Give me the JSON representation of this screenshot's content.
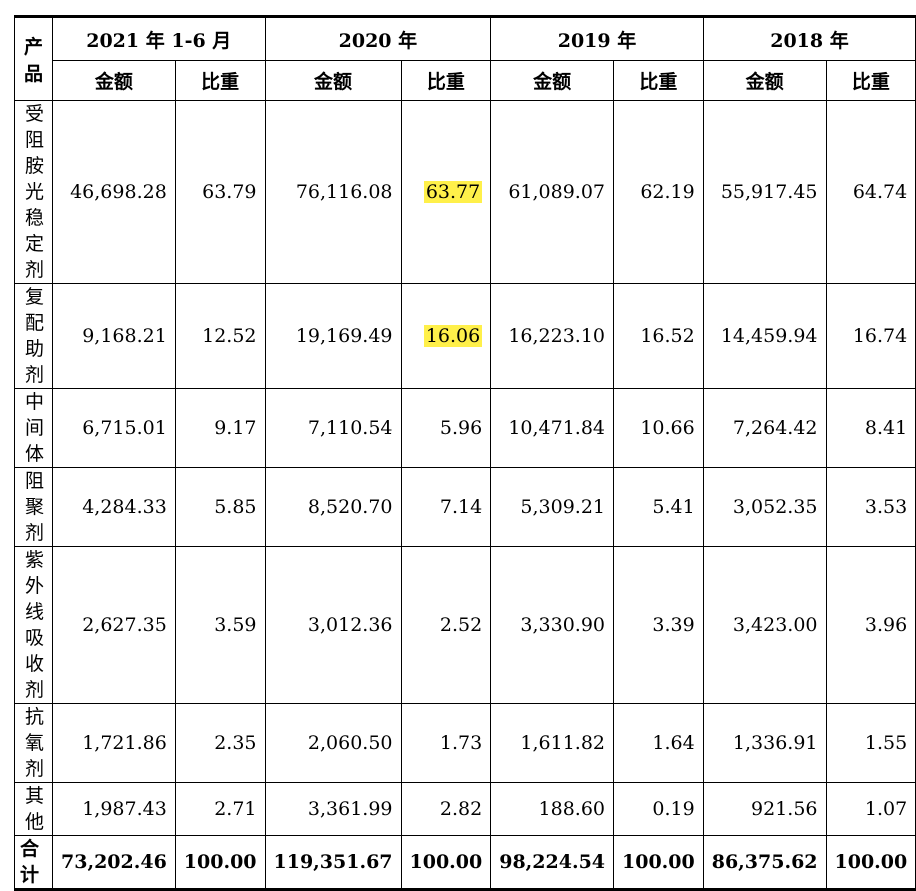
{
  "header": {
    "product": "产品",
    "periods": [
      "2021 年 1-6 月",
      "2020 年",
      "2019 年",
      "2018 年"
    ],
    "amount": "金额",
    "ratio": "比重"
  },
  "rows": [
    {
      "name": "受阻胺光稳定剂",
      "values": [
        "46,698.28",
        "63.79",
        "76,116.08",
        "63.77",
        "61,089.07",
        "62.19",
        "55,917.45",
        "64.74"
      ]
    },
    {
      "name": "复配助剂",
      "values": [
        "9,168.21",
        "12.52",
        "19,169.49",
        "16.06",
        "16,223.10",
        "16.52",
        "14,459.94",
        "16.74"
      ]
    },
    {
      "name": "中间体",
      "values": [
        "6,715.01",
        "9.17",
        "7,110.54",
        "5.96",
        "10,471.84",
        "10.66",
        "7,264.42",
        "8.41"
      ]
    },
    {
      "name": "阻聚剂",
      "values": [
        "4,284.33",
        "5.85",
        "8,520.70",
        "7.14",
        "5,309.21",
        "5.41",
        "3,052.35",
        "3.53"
      ]
    },
    {
      "name": "紫外线吸收剂",
      "values": [
        "2,627.35",
        "3.59",
        "3,012.36",
        "2.52",
        "3,330.90",
        "3.39",
        "3,423.00",
        "3.96"
      ]
    },
    {
      "name": "抗氧剂",
      "values": [
        "1,721.86",
        "2.35",
        "2,060.50",
        "1.73",
        "1,611.82",
        "1.64",
        "1,336.91",
        "1.55"
      ]
    },
    {
      "name": "其他",
      "values": [
        "1,987.43",
        "2.71",
        "3,361.99",
        "2.82",
        "188.60",
        "0.19",
        "921.56",
        "1.07"
      ]
    }
  ],
  "total": {
    "name": "合计",
    "values": [
      "73,202.46",
      "100.00",
      "119,351.67",
      "100.00",
      "98,224.54",
      "100.00",
      "86,375.62",
      "100.00"
    ]
  },
  "highlight_color": "#fff04a"
}
